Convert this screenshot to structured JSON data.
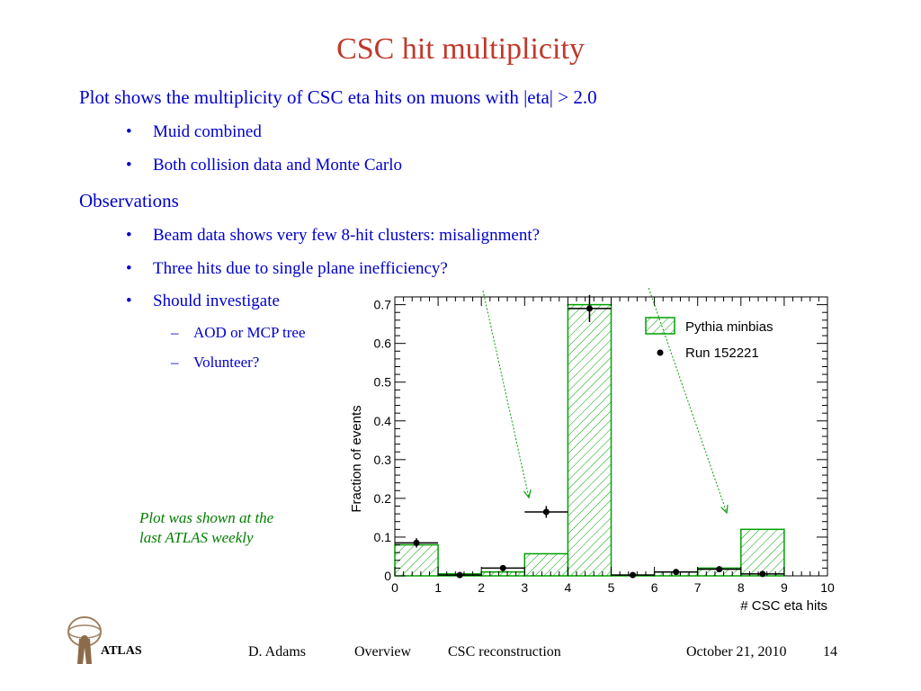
{
  "slide": {
    "title": "CSC hit multiplicity",
    "intro": "Plot shows the multiplicity of CSC eta hits on muons with |eta| > 2.0",
    "bullets1": [
      "Muid combined",
      "Both collision data and Monte Carlo"
    ],
    "section2": "Observations",
    "bullets2": [
      "Beam data shows very few 8-hit clusters: misalignment?",
      "Three hits due to single plane inefficiency?",
      "Should investigate"
    ],
    "subbullets": [
      "AOD or MCP tree",
      "Volunteer?"
    ],
    "note_line1": "Plot was shown at the",
    "note_line2": "last ATLAS weekly"
  },
  "footer": {
    "author": "D. Adams",
    "section": "Overview",
    "topic": "CSC reconstruction",
    "date": "October 21, 2010",
    "page": "14",
    "logo_text": "ATLAS"
  },
  "colors": {
    "title": "#c0392b",
    "text": "#0000cc",
    "note": "#008000",
    "mc_hist": "#00a000"
  },
  "chart_data": {
    "type": "bar",
    "xlabel": "# CSC eta hits",
    "ylabel": "Fraction of events",
    "xlim": [
      0,
      10
    ],
    "ylim": [
      0,
      0.72
    ],
    "xticks": [
      "0",
      "1",
      "2",
      "3",
      "4",
      "5",
      "6",
      "7",
      "8",
      "9",
      "10"
    ],
    "yticks": [
      "0",
      "0.1",
      "0.2",
      "0.3",
      "0.4",
      "0.5",
      "0.6",
      "0.7"
    ],
    "legend": {
      "placement": "top-right",
      "mc_label": "Pythia minbias",
      "data_label": "Run 152221"
    },
    "mc": {
      "bin_edges": [
        0,
        1,
        2,
        3,
        4,
        5,
        6,
        7,
        8,
        9,
        10
      ],
      "values": [
        0.08,
        0.005,
        0.01,
        0.057,
        0.7,
        0.002,
        0.01,
        0.02,
        0.12,
        0.0
      ]
    },
    "data": {
      "x": [
        0.5,
        1.5,
        2.5,
        3.5,
        4.5,
        5.5,
        6.5,
        7.5,
        8.5
      ],
      "y": [
        0.085,
        0.002,
        0.02,
        0.165,
        0.69,
        0.002,
        0.01,
        0.017,
        0.005
      ],
      "yerr": [
        0.012,
        0.003,
        0.005,
        0.015,
        0.035,
        0.003,
        0.004,
        0.005,
        0.003
      ]
    }
  }
}
